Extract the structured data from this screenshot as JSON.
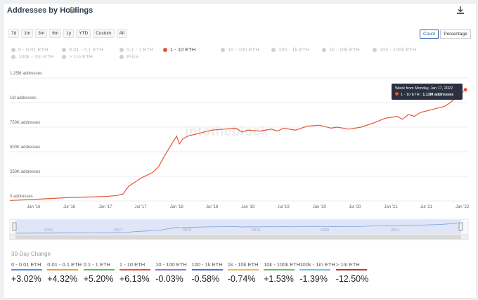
{
  "header": {
    "title": "Addresses by Holdings"
  },
  "range_buttons": [
    "7d",
    "1m",
    "3m",
    "6m",
    "1y",
    "YTD",
    "Custom",
    "All"
  ],
  "mode_toggle": {
    "count": "Count",
    "percentage": "Percentage",
    "active": "Count"
  },
  "legend": [
    "0 - 0.01 ETH",
    "0.01 - 0.1 ETH",
    "0.1 - 1 ETH",
    "1 - 10 ETH",
    "10 - 100 ETH",
    "100 - 1k ETH",
    "1k - 10k ETH",
    "10k - 100k ETH",
    "100k - 1m ETH",
    "> 1m ETH",
    "Price"
  ],
  "watermark": "intotheblock",
  "tooltip": {
    "line1": "Week from Monday, Jan 17, 2022",
    "series": "1 - 10 ETH :",
    "value": "1.13M addresses"
  },
  "navigator_labels": [
    "2016",
    "2017",
    "2018",
    "2019",
    "2020",
    "2021"
  ],
  "colors": {
    "accent": "#e4553a",
    "toggle_active": "#2f62b5",
    "navigator": "#d5def3"
  },
  "chart_data": {
    "type": "line",
    "title": "Addresses by Holdings",
    "active_series": "1 - 10 ETH",
    "y_ticks": [
      "0 addresses",
      "250K addresses",
      "500K addresses",
      "750K addresses",
      "1M addresses",
      "1.25M addresses"
    ],
    "ylim": [
      0,
      1250000
    ],
    "x_ticks": [
      "Jan '16",
      "Jul '16",
      "Jan '17",
      "Jul '17",
      "Jan '18",
      "Jul '18",
      "Jan '19",
      "Jul '19",
      "Jan '20",
      "Jul '20",
      "Jan '21",
      "Jul '21",
      "Jan '22"
    ],
    "grid": true,
    "legend_position": "top",
    "series": [
      {
        "name": "1 - 10 ETH",
        "x": [
          "2015-09",
          "2016-01",
          "2016-04",
          "2016-07",
          "2016-10",
          "2017-01",
          "2017-03",
          "2017-04",
          "2017-05",
          "2017-06",
          "2017-07",
          "2017-09",
          "2017-10",
          "2017-11",
          "2017-12",
          "2018-01",
          "2018-01-15",
          "2018-02",
          "2018-03",
          "2018-05",
          "2018-07",
          "2018-09",
          "2018-11",
          "2018-12",
          "2019-01",
          "2019-03",
          "2019-05",
          "2019-06",
          "2019-07",
          "2019-09",
          "2019-11",
          "2020-01",
          "2020-03",
          "2020-04",
          "2020-06",
          "2020-08",
          "2020-10",
          "2020-12",
          "2021-02",
          "2021-03",
          "2021-04",
          "2021-05",
          "2021-06",
          "2021-08",
          "2021-10",
          "2021-11",
          "2021-12",
          "2022-01-17"
        ],
        "values": [
          5000,
          15000,
          25000,
          35000,
          40000,
          45000,
          55000,
          70000,
          150000,
          190000,
          230000,
          290000,
          350000,
          460000,
          560000,
          660000,
          580000,
          630000,
          660000,
          690000,
          720000,
          730000,
          740000,
          700000,
          720000,
          710000,
          730000,
          710000,
          740000,
          720000,
          760000,
          770000,
          740000,
          750000,
          730000,
          750000,
          790000,
          840000,
          860000,
          830000,
          880000,
          860000,
          900000,
          930000,
          960000,
          1000000,
          1050000,
          1130000
        ]
      }
    ]
  },
  "thirty_day_change": {
    "title": "30-Day Change",
    "items": [
      {
        "name": "0 - 0.01 ETH",
        "value": "+3.02%",
        "color": "#5b8fd6"
      },
      {
        "name": "0.01 - 0.1 ETH",
        "value": "+4.32%",
        "color": "#e8a23b"
      },
      {
        "name": "0.1 - 1 ETH",
        "value": "+5.20%",
        "color": "#63b96a"
      },
      {
        "name": "1 - 10 ETH",
        "value": "+6.13%",
        "color": "#e4553a"
      },
      {
        "name": "10 - 100 ETH",
        "value": "-0.03%",
        "color": "#9b75c6"
      },
      {
        "name": "100 - 1k ETH",
        "value": "-0.58%",
        "color": "#4a78c2"
      },
      {
        "name": "1k - 10k ETH",
        "value": "-0.74%",
        "color": "#f0b84a"
      },
      {
        "name": "10k - 100k ETH",
        "value": "+1.53%",
        "color": "#6abf69"
      },
      {
        "name": "100k - 1m ETH",
        "value": "-1.39%",
        "color": "#6cc6d6"
      },
      {
        "name": "> 1m ETH",
        "value": "-12.50%",
        "color": "#c0392b"
      }
    ]
  }
}
